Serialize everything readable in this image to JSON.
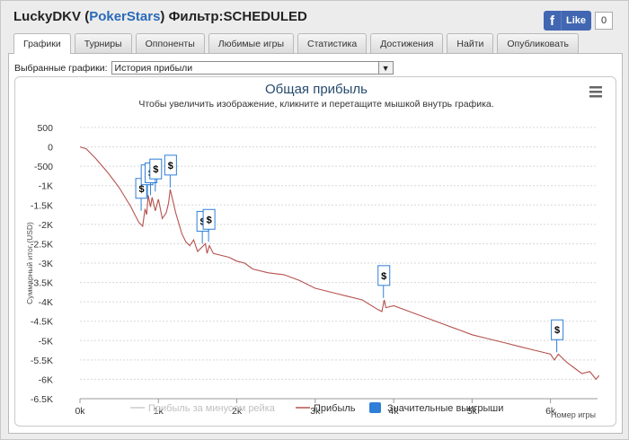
{
  "header": {
    "player": "LuckyDKV",
    "site": "PokerStars",
    "filter": "Фильтр:SCHEDULED"
  },
  "facebook": {
    "icon": "f",
    "like_label": "Like",
    "count": "0",
    "color": "#4267b2"
  },
  "tabs": [
    {
      "label": "Графики",
      "active": true
    },
    {
      "label": "Турниры",
      "active": false
    },
    {
      "label": "Оппоненты",
      "active": false
    },
    {
      "label": "Любимые игры",
      "active": false
    },
    {
      "label": "Статистика",
      "active": false
    },
    {
      "label": "Достижения",
      "active": false
    },
    {
      "label": "Найти",
      "active": false
    },
    {
      "label": "Опубликовать",
      "active": false
    }
  ],
  "selector": {
    "label": "Выбранные графики:",
    "value": "История прибыли"
  },
  "chart_data": {
    "type": "line",
    "title": "Общая прибыль",
    "subtitle": "Чтобы увеличить изображение, кликните и перетащите мышкой внутрь графика.",
    "xlabel": "Номер игры",
    "ylabel": "Суммарный итог (USD)",
    "xlim": [
      0,
      6600
    ],
    "ylim": [
      -6500,
      500
    ],
    "x_ticks": [
      "0k",
      "1k",
      "2k",
      "3k",
      "4k",
      "5k",
      "6k"
    ],
    "y_ticks": [
      "500",
      "0",
      "-500",
      "-1K",
      "-1.5K",
      "-2K",
      "-2.5K",
      "-3K",
      "-3.5K",
      "-4K",
      "-4.5K",
      "-5K",
      "-5.5K",
      "-6K",
      "-6.5K"
    ],
    "grid": true,
    "legend_position": "bottom",
    "series": [
      {
        "name": "Прибыль за минусом рейка",
        "color": "#cccccc",
        "visible": false
      },
      {
        "name": "Прибыль",
        "color": "#b5524e",
        "x": [
          0,
          80,
          200,
          350,
          500,
          650,
          750,
          800,
          830,
          850,
          870,
          900,
          920,
          960,
          1000,
          1050,
          1100,
          1130,
          1150,
          1180,
          1220,
          1300,
          1350,
          1400,
          1450,
          1500,
          1550,
          1600,
          1620,
          1650,
          1700,
          1800,
          1900,
          2000,
          2100,
          2200,
          2400,
          2600,
          2800,
          3000,
          3200,
          3400,
          3600,
          3800,
          3850,
          3880,
          3900,
          4000,
          4200,
          4400,
          4600,
          4800,
          5000,
          5200,
          5400,
          5600,
          5800,
          6000,
          6050,
          6100,
          6200,
          6300,
          6400,
          6500,
          6580,
          6620
        ],
        "values": [
          0,
          -50,
          -300,
          -650,
          -1050,
          -1550,
          -1950,
          -2050,
          -1600,
          -1750,
          -1250,
          -1550,
          -1300,
          -1650,
          -1350,
          -1850,
          -1700,
          -1450,
          -1100,
          -1350,
          -1700,
          -2250,
          -2450,
          -2550,
          -2400,
          -2700,
          -2600,
          -2500,
          -2750,
          -2550,
          -2750,
          -2800,
          -2850,
          -2950,
          -3000,
          -3150,
          -3250,
          -3300,
          -3450,
          -3650,
          -3750,
          -3850,
          -3950,
          -4200,
          -4250,
          -3950,
          -4150,
          -4100,
          -4250,
          -4400,
          -4550,
          -4700,
          -4850,
          -4950,
          -5050,
          -5150,
          -5250,
          -5350,
          -5500,
          -5350,
          -5550,
          -5700,
          -5850,
          -5800,
          -6000,
          -5900
        ]
      },
      {
        "name": "Значительные выигрыши",
        "color": "#2f7ed8",
        "symbol": "$",
        "type": "flags",
        "x": [
          780,
          850,
          900,
          960,
          1150,
          1560,
          1640,
          3870,
          6080
        ],
        "values": [
          -1650,
          -1300,
          -1250,
          -1150,
          -1050,
          -2500,
          -2450,
          -3900,
          -5300
        ]
      }
    ]
  },
  "menu_icon": "hamburger-icon"
}
